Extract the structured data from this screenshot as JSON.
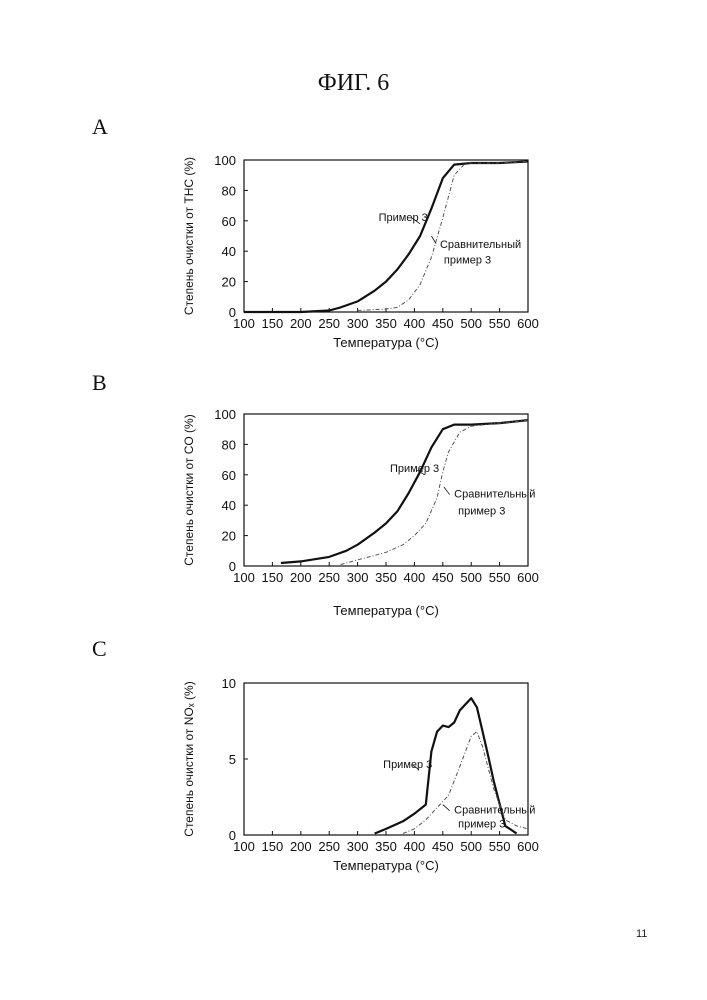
{
  "figure": {
    "title": "ФИГ. 6",
    "page_number": "11",
    "colors": {
      "primary_series": "#111111",
      "comparative_series": "#555555"
    }
  },
  "panels": [
    {
      "letter": "A"
    },
    {
      "letter": "B"
    },
    {
      "letter": "C"
    }
  ],
  "chart_data": [
    {
      "type": "line",
      "xlabel": "Температура (°C)",
      "ylabel": "Степень очистки от THC (%)",
      "xlim": [
        100,
        600
      ],
      "ylim": [
        0,
        100
      ],
      "xticks": [
        100,
        150,
        200,
        250,
        300,
        350,
        400,
        450,
        500,
        550,
        600
      ],
      "yticks": [
        0,
        20,
        40,
        60,
        80,
        100
      ],
      "grid": false,
      "series": [
        {
          "name": "Пример 3",
          "style": "solid",
          "x": [
            100,
            200,
            250,
            270,
            300,
            330,
            350,
            370,
            390,
            410,
            430,
            450,
            470,
            500,
            550,
            600
          ],
          "y": [
            0,
            0,
            1,
            3,
            7,
            14,
            20,
            28,
            38,
            50,
            68,
            88,
            97,
            98,
            98,
            99
          ]
        },
        {
          "name": "Сравнительный пример 3",
          "style": "dashed",
          "x": [
            300,
            350,
            370,
            390,
            410,
            430,
            450,
            470,
            490,
            500,
            550,
            600
          ],
          "y": [
            1,
            2,
            3,
            8,
            18,
            36,
            62,
            90,
            98,
            98,
            98,
            99
          ]
        }
      ],
      "annotations": [
        {
          "text": "Пример 3",
          "x": 337,
          "y": 60
        },
        {
          "text": "Сравнительный",
          "x": 445,
          "y": 42
        },
        {
          "text": "пример 3",
          "x": 452,
          "y": 32
        }
      ]
    },
    {
      "type": "line",
      "xlabel": "Температура (°C)",
      "ylabel": "Степень очистки от CO (%)",
      "xlim": [
        100,
        600
      ],
      "ylim": [
        0,
        100
      ],
      "xticks": [
        100,
        150,
        200,
        250,
        300,
        350,
        400,
        450,
        500,
        550,
        600
      ],
      "yticks": [
        0,
        20,
        40,
        60,
        80,
        100
      ],
      "grid": false,
      "series": [
        {
          "name": "Пример 3",
          "style": "solid",
          "x": [
            165,
            200,
            250,
            280,
            300,
            330,
            350,
            370,
            390,
            410,
            430,
            450,
            470,
            500,
            550,
            600
          ],
          "y": [
            2,
            3,
            6,
            10,
            14,
            22,
            28,
            36,
            48,
            62,
            78,
            90,
            93,
            93,
            94,
            96
          ]
        },
        {
          "name": "Сравнительный пример 3",
          "style": "dashed",
          "x": [
            270,
            300,
            330,
            350,
            380,
            400,
            420,
            440,
            450,
            460,
            480,
            500,
            550,
            600
          ],
          "y": [
            1,
            4,
            7,
            9,
            14,
            20,
            28,
            45,
            62,
            75,
            88,
            92,
            94,
            96
          ]
        }
      ],
      "annotations": [
        {
          "text": "Пример 3",
          "x": 357,
          "y": 62
        },
        {
          "text": "Сравнительный",
          "x": 470,
          "y": 45
        },
        {
          "text": "пример 3",
          "x": 477,
          "y": 34
        }
      ]
    },
    {
      "type": "line",
      "xlabel": "Температура (°C)",
      "ylabel": "Степень очистки от NOₓ (%)",
      "xlim": [
        100,
        600
      ],
      "ylim": [
        0,
        10
      ],
      "xticks": [
        100,
        150,
        200,
        250,
        300,
        350,
        400,
        450,
        500,
        550,
        600
      ],
      "yticks": [
        0,
        5,
        10
      ],
      "grid": false,
      "series": [
        {
          "name": "Пример 3",
          "style": "solid",
          "x": [
            330,
            350,
            380,
            400,
            420,
            430,
            440,
            450,
            460,
            470,
            480,
            490,
            500,
            510,
            520,
            530,
            540,
            560,
            580
          ],
          "y": [
            0.1,
            0.4,
            0.9,
            1.4,
            2.0,
            5.5,
            6.8,
            7.2,
            7.1,
            7.4,
            8.2,
            8.6,
            9.0,
            8.4,
            6.8,
            5.2,
            3.5,
            0.6,
            0.1
          ]
        },
        {
          "name": "Сравнительный пример 3",
          "style": "dashed",
          "x": [
            380,
            400,
            420,
            440,
            460,
            480,
            500,
            510,
            520,
            540,
            560,
            580,
            600
          ],
          "y": [
            0.1,
            0.4,
            1.0,
            1.8,
            2.6,
            4.5,
            6.5,
            6.8,
            5.8,
            3.0,
            1.0,
            0.6,
            0.4
          ]
        }
      ],
      "annotations": [
        {
          "text": "Пример 3",
          "x": 345,
          "y": 4.4
        },
        {
          "text": "Сравнительный",
          "x": 470,
          "y": 1.4
        },
        {
          "text": "пример 3",
          "x": 477,
          "y": 0.5
        }
      ]
    }
  ]
}
